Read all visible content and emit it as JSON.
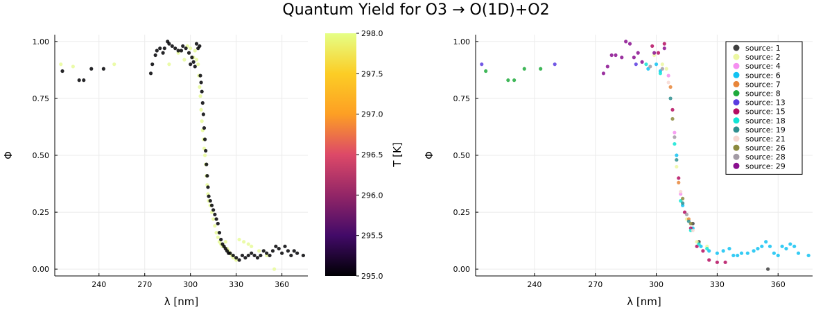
{
  "title": "Quantum Yield for O3 → O(1D)+O2",
  "chart_data": [
    {
      "type": "scatter",
      "xlabel": "λ [nm]",
      "ylabel": "Φ",
      "xlim": [
        211,
        377
      ],
      "ylim": [
        -0.03,
        1.03
      ],
      "xticks": [
        240,
        270,
        300,
        330,
        360
      ],
      "yticks": [
        0.0,
        0.25,
        0.5,
        0.75,
        1.0
      ],
      "ytick_labels": [
        "0.00",
        "0.25",
        "0.50",
        "0.75",
        "1.00"
      ],
      "grid": true,
      "colorbar": {
        "label": "T [K]",
        "range": [
          295.0,
          298.0
        ],
        "ticks": [
          "298.0",
          "297.5",
          "297.0",
          "296.5",
          "296.0",
          "295.5",
          "295.0"
        ],
        "gradient": [
          "#000004",
          "#420a68",
          "#932667",
          "#dd4968",
          "#fd9f24",
          "#fccd25",
          "#e5ff86"
        ]
      },
      "series": [
        {
          "temperature": 298.0,
          "color": "#e8fa9a",
          "points": [
            [
              215,
              0.9
            ],
            [
              223,
              0.89
            ],
            [
              250,
              0.9
            ],
            [
              286,
              0.9
            ],
            [
              292,
              0.95
            ],
            [
              296,
              0.92
            ],
            [
              298,
              0.98
            ],
            [
              300,
              0.97
            ],
            [
              302,
              0.93
            ],
            [
              303,
              0.96
            ],
            [
              304,
              0.92
            ],
            [
              305,
              0.9
            ],
            [
              305.5,
              0.85
            ],
            [
              306,
              0.8
            ],
            [
              306.5,
              0.76
            ],
            [
              307,
              0.7
            ],
            [
              307.5,
              0.65
            ],
            [
              308,
              0.61
            ],
            [
              308.5,
              0.57
            ],
            [
              309,
              0.53
            ],
            [
              309.5,
              0.5
            ],
            [
              310,
              0.46
            ],
            [
              310.5,
              0.41
            ],
            [
              311,
              0.37
            ],
            [
              311.5,
              0.33
            ],
            [
              312,
              0.3
            ],
            [
              313,
              0.28
            ],
            [
              314,
              0.25
            ],
            [
              315,
              0.22
            ],
            [
              316,
              0.19
            ],
            [
              317,
              0.16
            ],
            [
              318,
              0.14
            ],
            [
              319,
              0.12
            ],
            [
              320,
              0.11
            ],
            [
              321,
              0.1
            ],
            [
              322,
              0.1
            ],
            [
              323,
              0.12
            ],
            [
              324,
              0.09
            ],
            [
              325,
              0.08
            ],
            [
              326,
              0.07
            ],
            [
              327,
              0.06
            ],
            [
              328,
              0.05
            ],
            [
              330,
              0.04
            ],
            [
              332,
              0.13
            ],
            [
              335,
              0.12
            ],
            [
              338,
              0.11
            ],
            [
              340,
              0.1
            ],
            [
              345,
              0.08
            ],
            [
              350,
              0.06
            ],
            [
              355,
              0.0
            ]
          ]
        },
        {
          "temperature": 295.0,
          "color": "#000004",
          "points": [
            [
              216,
              0.87
            ],
            [
              227,
              0.83
            ],
            [
              230,
              0.83
            ],
            [
              235,
              0.88
            ],
            [
              243,
              0.88
            ],
            [
              274,
              0.86
            ],
            [
              275,
              0.9
            ],
            [
              277,
              0.94
            ],
            [
              278,
              0.96
            ],
            [
              280,
              0.97
            ],
            [
              282,
              0.95
            ],
            [
              283,
              0.97
            ],
            [
              285,
              1.0
            ],
            [
              286,
              0.99
            ],
            [
              288,
              0.98
            ],
            [
              290,
              0.97
            ],
            [
              292,
              0.96
            ],
            [
              294,
              0.96
            ],
            [
              295,
              0.98
            ],
            [
              297,
              0.97
            ],
            [
              299,
              0.95
            ],
            [
              300,
              0.9
            ],
            [
              301,
              0.93
            ],
            [
              302,
              0.91
            ],
            [
              303,
              0.89
            ],
            [
              304,
              0.99
            ],
            [
              305,
              0.97
            ],
            [
              306,
              0.98
            ],
            [
              306.5,
              0.85
            ],
            [
              307,
              0.82
            ],
            [
              307.5,
              0.78
            ],
            [
              308,
              0.73
            ],
            [
              308.5,
              0.68
            ],
            [
              309,
              0.62
            ],
            [
              309.5,
              0.57
            ],
            [
              310,
              0.52
            ],
            [
              310.5,
              0.46
            ],
            [
              311,
              0.41
            ],
            [
              311.5,
              0.36
            ],
            [
              312,
              0.32
            ],
            [
              313,
              0.3
            ],
            [
              314,
              0.28
            ],
            [
              315,
              0.26
            ],
            [
              316,
              0.24
            ],
            [
              317,
              0.22
            ],
            [
              318,
              0.2
            ],
            [
              319,
              0.16
            ],
            [
              320,
              0.13
            ],
            [
              321,
              0.11
            ],
            [
              322,
              0.1
            ],
            [
              323,
              0.09
            ],
            [
              324,
              0.08
            ],
            [
              325,
              0.07
            ],
            [
              326,
              0.07
            ],
            [
              328,
              0.06
            ],
            [
              330,
              0.05
            ],
            [
              332,
              0.04
            ],
            [
              334,
              0.06
            ],
            [
              336,
              0.05
            ],
            [
              338,
              0.06
            ],
            [
              340,
              0.07
            ],
            [
              342,
              0.06
            ],
            [
              344,
              0.05
            ],
            [
              346,
              0.06
            ],
            [
              348,
              0.08
            ],
            [
              350,
              0.07
            ],
            [
              352,
              0.06
            ],
            [
              354,
              0.08
            ],
            [
              356,
              0.1
            ],
            [
              358,
              0.09
            ],
            [
              360,
              0.07
            ],
            [
              362,
              0.1
            ],
            [
              364,
              0.08
            ],
            [
              366,
              0.06
            ],
            [
              368,
              0.08
            ],
            [
              370,
              0.07
            ],
            [
              374,
              0.06
            ]
          ]
        }
      ]
    },
    {
      "type": "scatter",
      "xlabel": "λ [nm]",
      "ylabel": "Φ",
      "xlim": [
        211,
        377
      ],
      "ylim": [
        -0.03,
        1.03
      ],
      "xticks": [
        240,
        270,
        300,
        330,
        360
      ],
      "yticks": [
        0.0,
        0.25,
        0.5,
        0.75,
        1.0
      ],
      "ytick_labels": [
        "0.00",
        "0.25",
        "0.50",
        "0.75",
        "1.00"
      ],
      "grid": true,
      "legend_position": "top-right",
      "series": [
        {
          "name": "source: 1",
          "color": "#3f3f3f",
          "points": [
            [
              355,
              0.0
            ],
            [
              318,
              0.2
            ],
            [
              321,
              0.12
            ]
          ]
        },
        {
          "name": "source: 2",
          "color": "#ecf7a1",
          "points": [
            [
              299,
              0.94
            ],
            [
              303,
              0.9
            ],
            [
              305,
              0.88
            ],
            [
              310,
              0.45
            ],
            [
              315,
              0.22
            ],
            [
              320,
              0.12
            ],
            [
              325,
              0.1
            ]
          ]
        },
        {
          "name": "source: 4",
          "color": "#f58ff0",
          "points": [
            [
              306,
              0.85
            ],
            [
              309,
              0.6
            ],
            [
              312,
              0.33
            ]
          ]
        },
        {
          "name": "source: 6",
          "color": "#12c2f2",
          "points": [
            [
              296,
              0.88
            ],
            [
              300,
              0.9
            ],
            [
              302,
              0.87
            ],
            [
              310,
              0.5
            ],
            [
              313,
              0.28
            ],
            [
              318,
              0.18
            ],
            [
              322,
              0.1
            ],
            [
              326,
              0.08
            ],
            [
              330,
              0.07
            ],
            [
              333,
              0.08
            ],
            [
              336,
              0.09
            ],
            [
              338,
              0.06
            ],
            [
              340,
              0.06
            ],
            [
              342,
              0.07
            ],
            [
              345,
              0.07
            ],
            [
              348,
              0.08
            ],
            [
              350,
              0.09
            ],
            [
              352,
              0.1
            ],
            [
              354,
              0.12
            ],
            [
              356,
              0.1
            ],
            [
              358,
              0.07
            ],
            [
              360,
              0.06
            ],
            [
              362,
              0.1
            ],
            [
              364,
              0.09
            ],
            [
              366,
              0.11
            ],
            [
              368,
              0.1
            ],
            [
              370,
              0.07
            ],
            [
              375,
              0.06
            ]
          ]
        },
        {
          "name": "source: 7",
          "color": "#e8863a",
          "points": [
            [
              307,
              0.8
            ],
            [
              311,
              0.38
            ],
            [
              316,
              0.22
            ]
          ]
        },
        {
          "name": "source: 8",
          "color": "#1faa3c",
          "points": [
            [
              216,
              0.87
            ],
            [
              227,
              0.83
            ],
            [
              230,
              0.83
            ],
            [
              235,
              0.88
            ],
            [
              243,
              0.88
            ]
          ]
        },
        {
          "name": "source: 13",
          "color": "#5a3ce0",
          "points": [
            [
              214,
              0.9
            ],
            [
              250,
              0.9
            ],
            [
              290,
              0.9
            ]
          ]
        },
        {
          "name": "source: 15",
          "color": "#b50e62",
          "points": [
            [
              298,
              0.98
            ],
            [
              301,
              0.95
            ],
            [
              304,
              0.99
            ],
            [
              308,
              0.7
            ],
            [
              311,
              0.4
            ],
            [
              314,
              0.25
            ],
            [
              317,
              0.18
            ],
            [
              320,
              0.1
            ],
            [
              323,
              0.08
            ],
            [
              326,
              0.04
            ],
            [
              330,
              0.03
            ],
            [
              334,
              0.03
            ]
          ]
        },
        {
          "name": "source: 18",
          "color": "#10e5d5",
          "points": [
            [
              295,
              0.9
            ],
            [
              302,
              0.86
            ],
            [
              309,
              0.55
            ],
            [
              312,
              0.3
            ],
            [
              317,
              0.17
            ],
            [
              321,
              0.11
            ],
            [
              325,
              0.09
            ]
          ]
        },
        {
          "name": "source: 19",
          "color": "#2f8f8f",
          "points": [
            [
              307,
              0.75
            ],
            [
              310,
              0.48
            ],
            [
              313,
              0.29
            ],
            [
              316,
              0.21
            ]
          ]
        },
        {
          "name": "source: 21",
          "color": "#f7d8d2",
          "points": [
            [
              306,
              0.82
            ],
            [
              312,
              0.34
            ],
            [
              318,
              0.17
            ]
          ]
        },
        {
          "name": "source: 26",
          "color": "#8c8a3e",
          "points": [
            [
              308,
              0.66
            ],
            [
              313,
              0.31
            ],
            [
              317,
              0.2
            ]
          ]
        },
        {
          "name": "source: 28",
          "color": "#a39ba5",
          "points": [
            [
              297,
              0.89
            ],
            [
              303,
              0.88
            ],
            [
              309,
              0.58
            ],
            [
              315,
              0.24
            ]
          ]
        },
        {
          "name": "source: 29",
          "color": "#8a0f8f",
          "points": [
            [
              274,
              0.86
            ],
            [
              276,
              0.89
            ],
            [
              278,
              0.94
            ],
            [
              280,
              0.94
            ],
            [
              283,
              0.93
            ],
            [
              285,
              1.0
            ],
            [
              287,
              0.99
            ],
            [
              289,
              0.93
            ],
            [
              291,
              0.95
            ],
            [
              293,
              0.91
            ],
            [
              299,
              0.95
            ],
            [
              304,
              0.97
            ]
          ]
        }
      ]
    }
  ]
}
